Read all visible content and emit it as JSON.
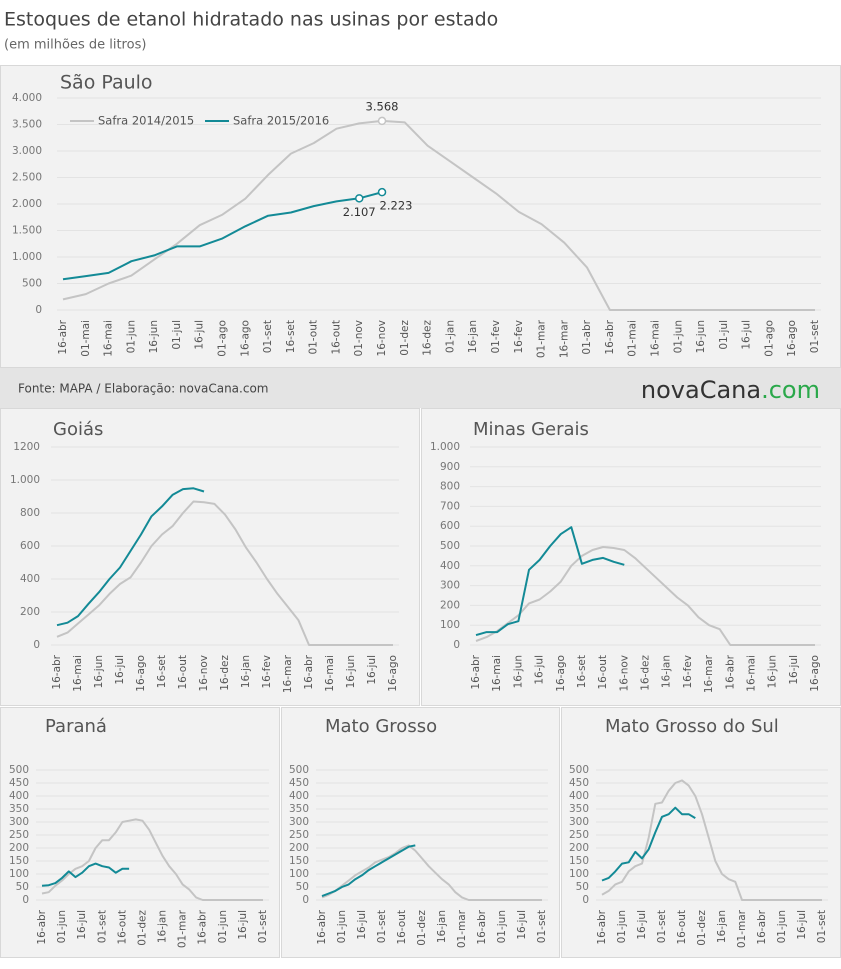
{
  "header": {
    "title": "Estoques de etanol hidratado nas usinas por estado",
    "subtitle": "(em milhões de litros)"
  },
  "footer": {
    "source": "Fonte: MAPA / Elaboração: novaCana.com",
    "logo": [
      "nova",
      "Cana",
      ".com"
    ]
  },
  "chart_data": [
    {
      "type": "line",
      "title": "São Paulo",
      "legend": "upper left",
      "grid": true,
      "categories": [
        "16-abr",
        "01-mai",
        "16-mai",
        "01-jun",
        "16-jun",
        "01-jul",
        "16-jul",
        "01-ago",
        "16-ago",
        "01-set",
        "16-set",
        "01-out",
        "16-out",
        "01-nov",
        "16-nov",
        "01-dez",
        "16-dez",
        "01-jan",
        "16-jan",
        "01-fev",
        "16-fev",
        "01-mar",
        "16-mar",
        "01-abr",
        "16-abr",
        "01-mai",
        "16-mai",
        "01-jun",
        "16-jun",
        "01-jul",
        "16-jul",
        "01-ago",
        "16-ago",
        "01-set"
      ],
      "ylim": [
        0,
        4000
      ],
      "yticks": [
        0,
        500,
        {
          "value": 1000,
          "label": "1.000"
        },
        {
          "value": 1500,
          "label": "1.500"
        },
        {
          "value": 2000,
          "label": "2.000"
        },
        {
          "value": 2500,
          "label": "2.500"
        },
        {
          "value": 3000,
          "label": "3.000"
        },
        {
          "value": 3500,
          "label": "3.500"
        },
        {
          "value": 4000,
          "label": "4.000"
        }
      ],
      "series": [
        {
          "name": "Safra 2014/2015",
          "color": "#c4c4c4",
          "values": [
            200,
            300,
            500,
            650,
            950,
            1250,
            1600,
            1800,
            2100,
            2550,
            2950,
            3150,
            3420,
            3520,
            3568,
            3540,
            3100,
            2800,
            2500,
            2200,
            1850,
            1620,
            1270,
            800,
            0,
            0,
            0,
            0,
            0,
            0,
            0,
            0,
            0,
            0
          ],
          "value_labels": [
            null,
            null,
            null,
            null,
            null,
            null,
            null,
            null,
            null,
            null,
            null,
            null,
            null,
            null,
            "3.568",
            null,
            null,
            null,
            null,
            null,
            null,
            null,
            null,
            null,
            null,
            null,
            null,
            null,
            null,
            null,
            null,
            null,
            null,
            null
          ]
        },
        {
          "name": "Safra 2015/2016",
          "color": "#138a96",
          "values": [
            580,
            640,
            700,
            920,
            1030,
            1200,
            1200,
            1350,
            1580,
            1780,
            1840,
            1960,
            2050,
            2107,
            2223,
            null,
            null,
            null,
            null,
            null,
            null,
            null,
            null,
            null,
            null,
            null,
            null,
            null,
            null,
            null,
            null,
            null,
            null,
            null
          ],
          "value_labels": [
            null,
            null,
            null,
            null,
            null,
            null,
            null,
            null,
            null,
            null,
            null,
            null,
            null,
            "2.107",
            "2.223",
            null,
            null,
            null,
            null,
            null,
            null,
            null,
            null,
            null,
            null,
            null,
            null,
            null,
            null,
            null,
            null,
            null,
            null,
            null
          ]
        }
      ]
    },
    {
      "type": "line",
      "title": "Goiás",
      "grid": true,
      "categories": [
        "16-abr",
        null,
        "16-mai",
        null,
        "16-jun",
        null,
        "16-jul",
        null,
        "16-ago",
        null,
        "16-set",
        null,
        "16-out",
        null,
        "16-nov",
        null,
        "16-dez",
        null,
        "16-jan",
        null,
        "16-fev",
        null,
        "16-mar",
        null,
        "16-abr",
        null,
        "16-mai",
        null,
        "16-jun",
        null,
        "16-jul",
        null,
        "16-ago"
      ],
      "ylim": [
        0,
        1200
      ],
      "yticks": [
        0,
        200,
        400,
        600,
        800,
        {
          "value": 1000,
          "label": "1.000"
        },
        1200
      ],
      "series": [
        {
          "color": "#c4c4c4",
          "values": [
            50,
            75,
            130,
            185,
            240,
            310,
            370,
            410,
            500,
            600,
            670,
            720,
            800,
            870,
            865,
            855,
            790,
            700,
            590,
            500,
            400,
            310,
            230,
            150,
            0,
            0,
            0,
            0,
            0,
            0,
            0,
            0,
            0
          ]
        },
        {
          "color": "#138a96",
          "values": [
            120,
            135,
            175,
            250,
            320,
            400,
            470,
            570,
            670,
            780,
            840,
            910,
            945,
            950,
            930,
            null,
            null,
            null,
            null,
            null,
            null,
            null,
            null,
            null,
            null,
            null,
            null,
            null,
            null,
            null,
            null,
            null,
            null
          ]
        }
      ]
    },
    {
      "type": "line",
      "title": "Minas Gerais",
      "grid": true,
      "categories": [
        "16-abr",
        null,
        "16-mai",
        null,
        "16-jun",
        null,
        "16-jul",
        null,
        "16-ago",
        null,
        "16-set",
        null,
        "16-out",
        null,
        "16-nov",
        null,
        "16-dez",
        null,
        "16-jan",
        null,
        "16-fev",
        null,
        "16-mar",
        null,
        "16-abr",
        null,
        "16-mai",
        null,
        "16-jun",
        null,
        "16-jul",
        null,
        "16-ago"
      ],
      "ylim": [
        0,
        1000
      ],
      "yticks": [
        0,
        100,
        200,
        300,
        400,
        500,
        600,
        700,
        800,
        900,
        {
          "value": 1000,
          "label": "1.000"
        }
      ],
      "series": [
        {
          "color": "#c4c4c4",
          "values": [
            20,
            40,
            70,
            110,
            150,
            210,
            230,
            270,
            320,
            400,
            450,
            480,
            495,
            490,
            480,
            440,
            390,
            340,
            290,
            240,
            200,
            140,
            100,
            80,
            0,
            0,
            0,
            0,
            0,
            0,
            0,
            0,
            0
          ]
        },
        {
          "color": "#138a96",
          "values": [
            50,
            65,
            65,
            105,
            120,
            380,
            430,
            500,
            560,
            595,
            410,
            430,
            440,
            420,
            405,
            null,
            null,
            null,
            null,
            null,
            null,
            null,
            null,
            null,
            null,
            null,
            null,
            null,
            null,
            null,
            null,
            null,
            null
          ]
        }
      ]
    },
    {
      "type": "line",
      "title": "Paraná",
      "grid": true,
      "categories": [
        "16-abr",
        null,
        null,
        "01-jun",
        null,
        null,
        "16-jul",
        null,
        null,
        "01-set",
        null,
        null,
        "16-out",
        null,
        null,
        "01-dez",
        null,
        null,
        "16-jan",
        null,
        null,
        "01-mar",
        null,
        null,
        "16-abr",
        null,
        null,
        "01-jun",
        null,
        null,
        "16-jul",
        null,
        null,
        "01-set"
      ],
      "ylim": [
        0,
        500
      ],
      "yticks": [
        0,
        50,
        100,
        150,
        200,
        250,
        300,
        350,
        400,
        450,
        500
      ],
      "series": [
        {
          "color": "#c4c4c4",
          "values": [
            25,
            30,
            55,
            75,
            100,
            120,
            130,
            150,
            200,
            230,
            230,
            260,
            300,
            305,
            310,
            305,
            270,
            220,
            170,
            130,
            100,
            60,
            40,
            10,
            0,
            0,
            0,
            0,
            0,
            0,
            0,
            0,
            0,
            0
          ]
        },
        {
          "color": "#138a96",
          "values": [
            55,
            57,
            65,
            85,
            110,
            88,
            105,
            130,
            140,
            130,
            125,
            105,
            120,
            120,
            null,
            null,
            null,
            null,
            null,
            null,
            null,
            null,
            null,
            null,
            null,
            null,
            null,
            null,
            null,
            null,
            null,
            null,
            null,
            null
          ]
        }
      ]
    },
    {
      "type": "line",
      "title": "Mato Grosso",
      "grid": true,
      "categories": [
        "16-abr",
        null,
        null,
        "01-jun",
        null,
        null,
        "16-jul",
        null,
        null,
        "01-set",
        null,
        null,
        "16-out",
        null,
        null,
        "01-dez",
        null,
        null,
        "16-jan",
        null,
        null,
        "01-mar",
        null,
        null,
        "16-abr",
        null,
        null,
        "01-jun",
        null,
        null,
        "16-jul",
        null,
        null,
        "01-set"
      ],
      "ylim": [
        0,
        500
      ],
      "yticks": [
        0,
        50,
        100,
        150,
        200,
        250,
        300,
        350,
        400,
        450,
        500
      ],
      "series": [
        {
          "color": "#c4c4c4",
          "values": [
            10,
            20,
            35,
            55,
            75,
            95,
            110,
            125,
            145,
            155,
            165,
            180,
            200,
            210,
            190,
            160,
            130,
            105,
            80,
            60,
            30,
            10,
            0,
            0,
            0,
            0,
            0,
            0,
            0,
            0,
            0,
            0,
            0,
            0
          ]
        },
        {
          "color": "#138a96",
          "values": [
            15,
            25,
            35,
            50,
            60,
            80,
            95,
            115,
            130,
            145,
            160,
            175,
            190,
            205,
            210,
            null,
            null,
            null,
            null,
            null,
            null,
            null,
            null,
            null,
            null,
            null,
            null,
            null,
            null,
            null,
            null,
            null,
            null,
            null
          ]
        }
      ]
    },
    {
      "type": "line",
      "title": "Mato Grosso do Sul",
      "grid": true,
      "categories": [
        "16-abr",
        null,
        null,
        "01-jun",
        null,
        null,
        "16-jul",
        null,
        null,
        "01-set",
        null,
        null,
        "16-out",
        null,
        null,
        "01-dez",
        null,
        null,
        "16-jan",
        null,
        null,
        "01-mar",
        null,
        null,
        "16-abr",
        null,
        null,
        "01-jun",
        null,
        null,
        "16-jul",
        null,
        null,
        "01-set"
      ],
      "ylim": [
        0,
        500
      ],
      "yticks": [
        0,
        50,
        100,
        150,
        200,
        250,
        300,
        350,
        400,
        450,
        500
      ],
      "series": [
        {
          "color": "#c4c4c4",
          "values": [
            20,
            35,
            60,
            70,
            110,
            130,
            140,
            240,
            370,
            375,
            420,
            450,
            460,
            440,
            400,
            330,
            240,
            150,
            100,
            80,
            70,
            0,
            0,
            0,
            0,
            0,
            0,
            0,
            0,
            0,
            0,
            0,
            0,
            0
          ]
        },
        {
          "color": "#138a96",
          "values": [
            75,
            85,
            110,
            140,
            145,
            185,
            160,
            195,
            260,
            320,
            330,
            355,
            330,
            330,
            315,
            null,
            null,
            null,
            null,
            null,
            null,
            null,
            null,
            null,
            null,
            null,
            null,
            null,
            null,
            null,
            null,
            null,
            null,
            null
          ]
        }
      ]
    }
  ]
}
